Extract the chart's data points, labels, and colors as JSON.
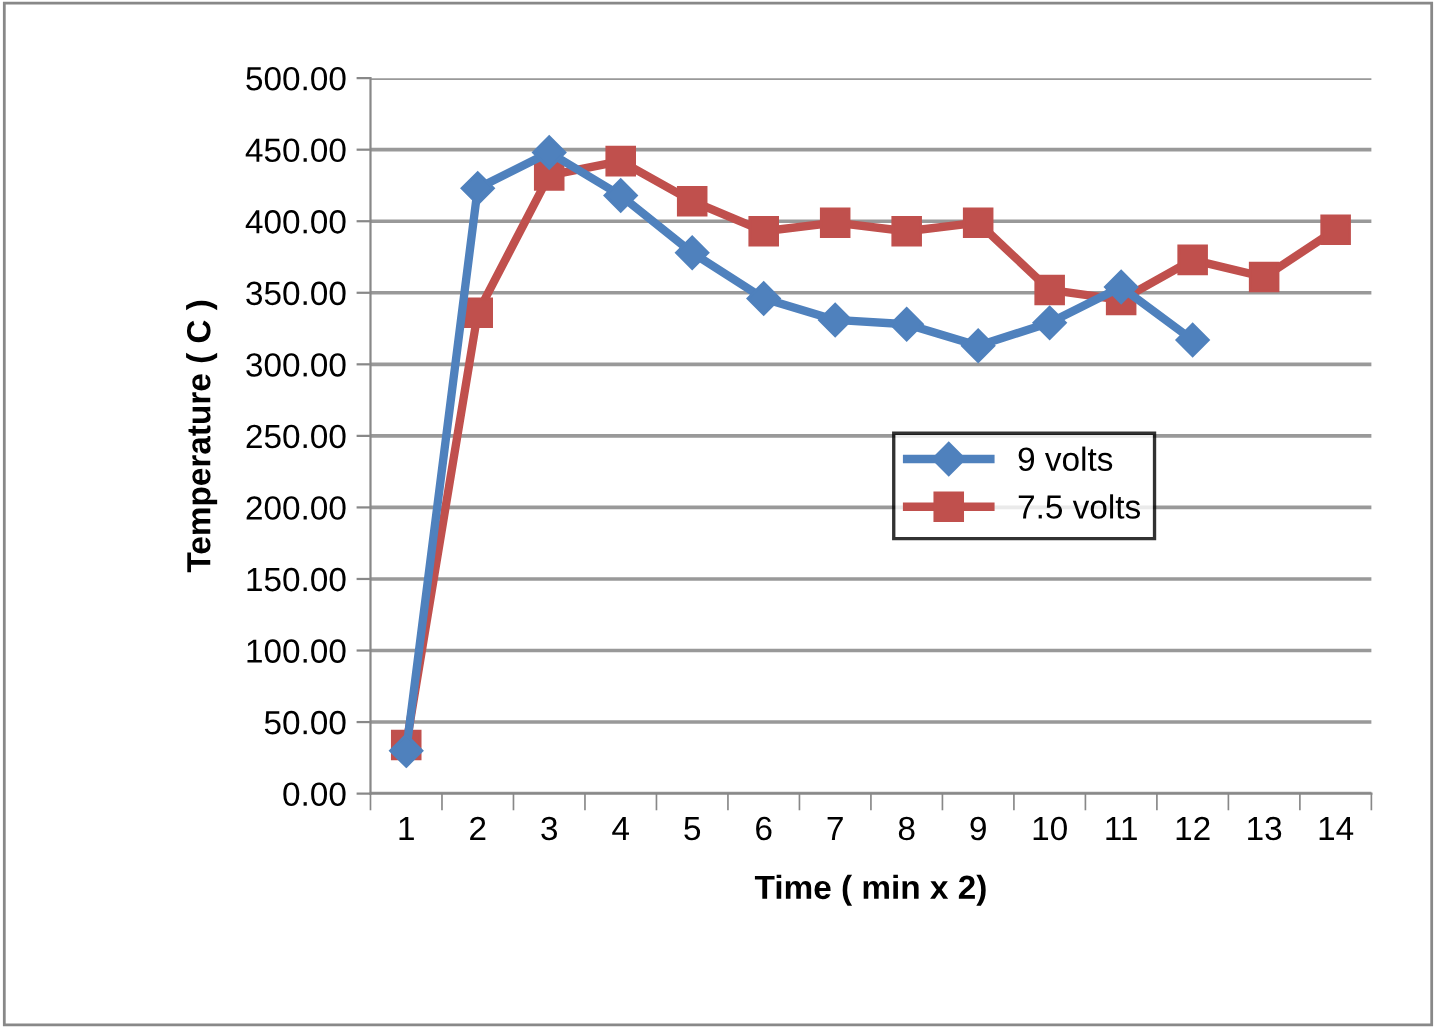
{
  "chart_data": {
    "type": "line",
    "xlabel": "Time ( min x 2)",
    "ylabel": "Temperature ( C )",
    "categories": [
      "1",
      "2",
      "3",
      "4",
      "5",
      "6",
      "7",
      "8",
      "9",
      "10",
      "11",
      "12",
      "13",
      "14"
    ],
    "series": [
      {
        "name": "9 volts",
        "color": "#4f81bd",
        "marker": "diamond",
        "values": [
          30,
          423,
          448,
          418,
          378,
          346,
          331,
          328,
          313,
          329,
          354,
          317,
          null,
          null
        ]
      },
      {
        "name": "7.5 volts",
        "color": "#c0504d",
        "marker": "square",
        "values": [
          34,
          336,
          432,
          442,
          414,
          393,
          399,
          393,
          399,
          352,
          345,
          373,
          361,
          394
        ]
      }
    ],
    "ylim": [
      0,
      500
    ],
    "yticks": [
      {
        "value": 0,
        "label": "0.00"
      },
      {
        "value": 50,
        "label": "50.00"
      },
      {
        "value": 100,
        "label": "100.00"
      },
      {
        "value": 150,
        "label": "150.00"
      },
      {
        "value": 200,
        "label": "200.00"
      },
      {
        "value": 250,
        "label": "250.00"
      },
      {
        "value": 300,
        "label": "300.00"
      },
      {
        "value": 350,
        "label": "350.00"
      },
      {
        "value": 400,
        "label": "400.00"
      },
      {
        "value": 450,
        "label": "450.00"
      },
      {
        "value": 500,
        "label": "500.00"
      }
    ],
    "grid": "y",
    "legend": "center right"
  }
}
